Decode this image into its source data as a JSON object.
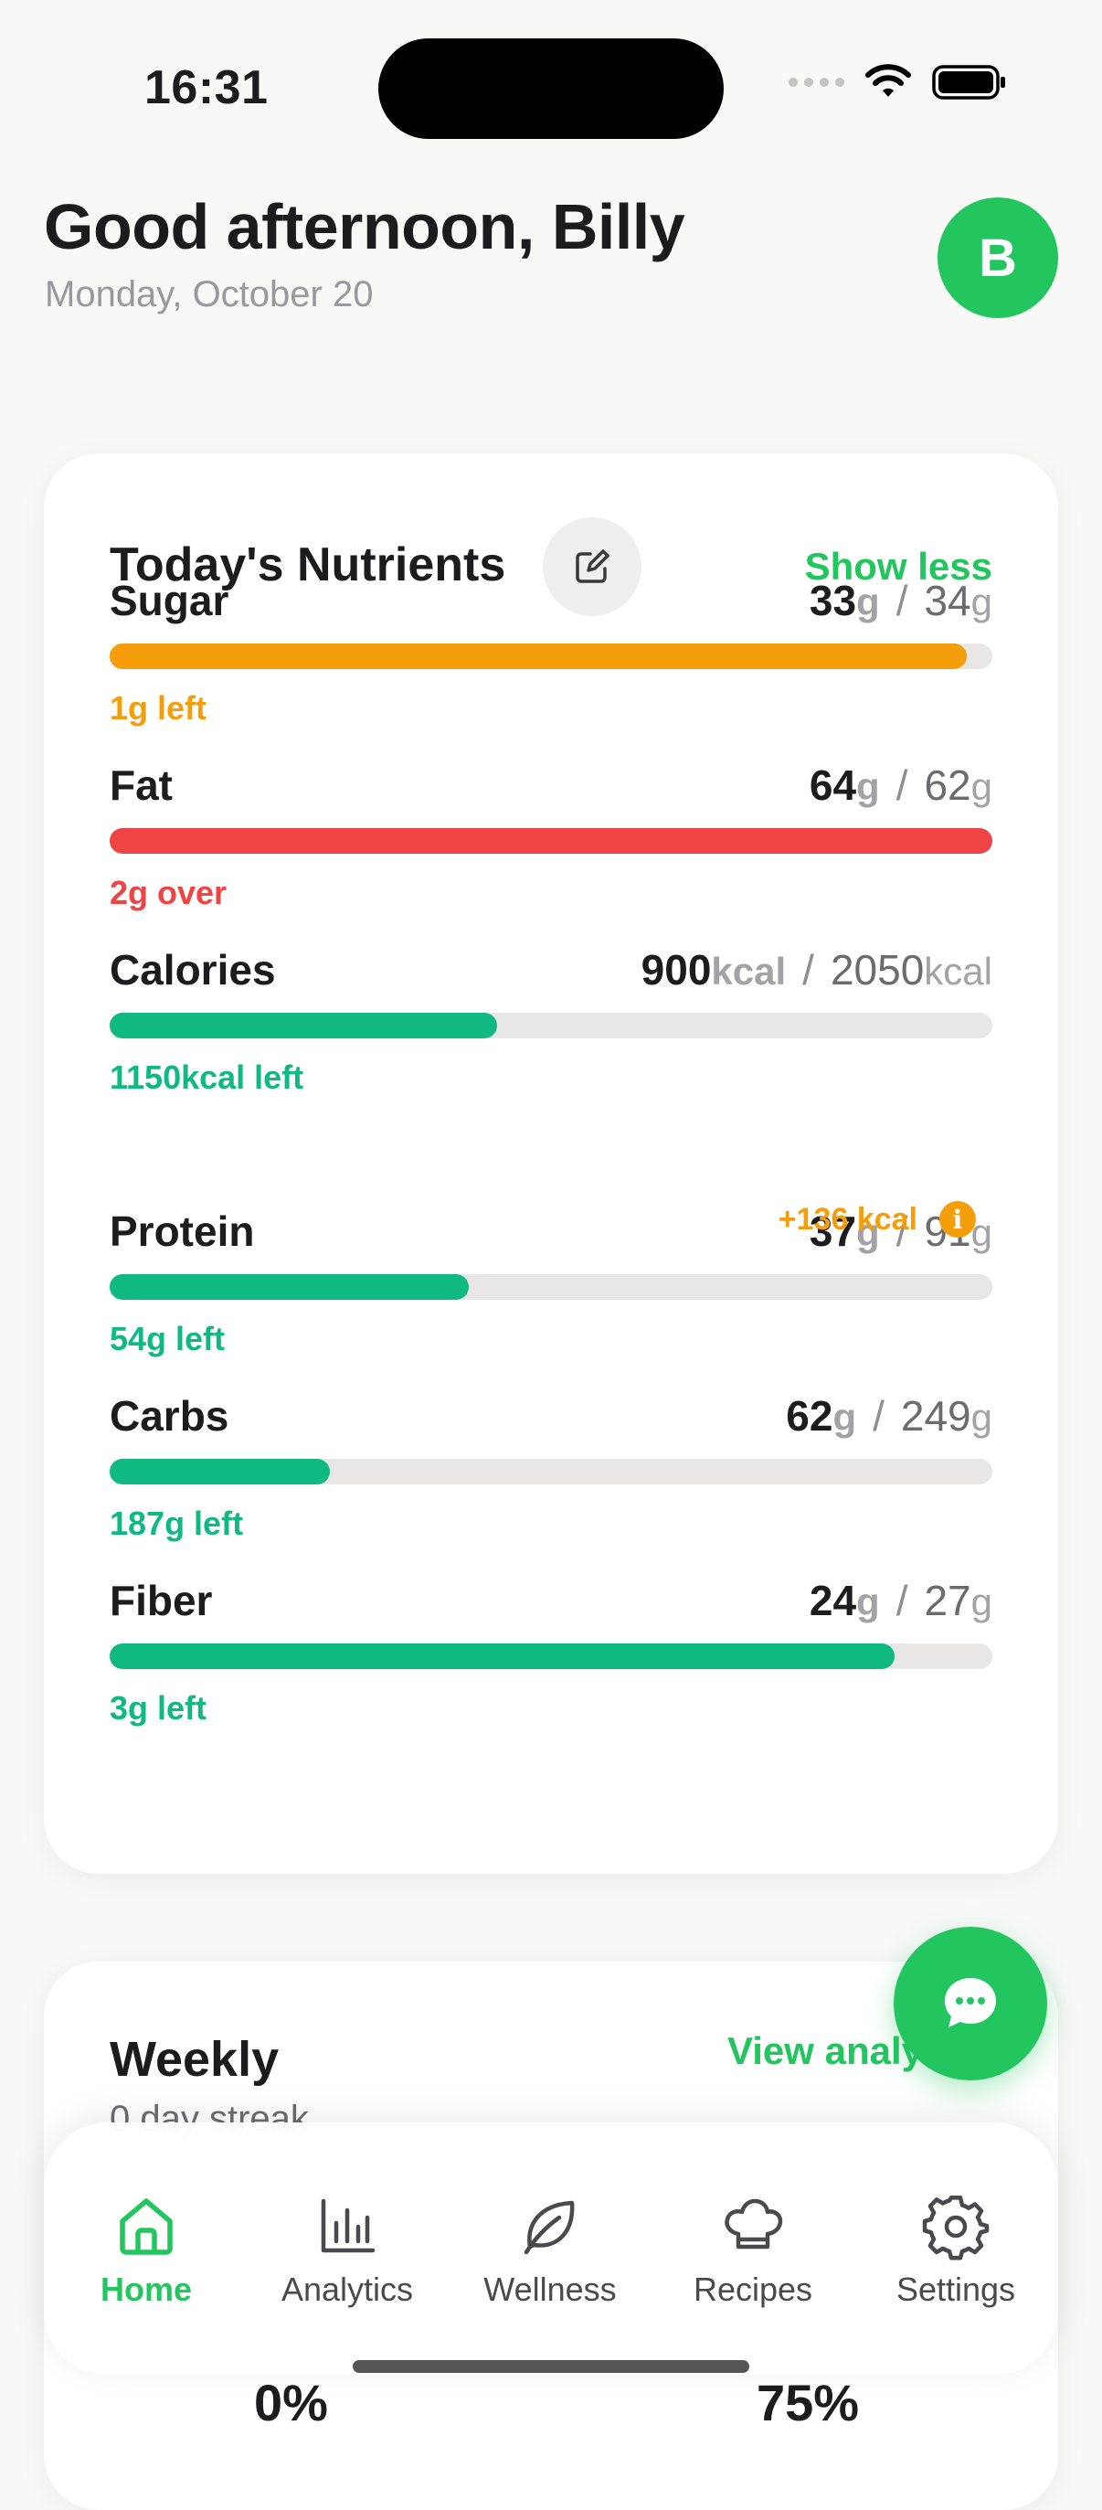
{
  "status_bar": {
    "time": "16:31"
  },
  "header": {
    "greeting": "Good afternoon, Billy",
    "date": "Monday, October 20",
    "avatar_initial": "B"
  },
  "nutrients_card": {
    "title": "Today's Nutrients",
    "toggle_label": "Show less",
    "bonus_label": "+136 kcal",
    "items": [
      {
        "name": "Sugar",
        "current": "33",
        "goal": "34",
        "unit": "g",
        "status": "1g left",
        "progress": 0.971,
        "color": "#f59e0b"
      },
      {
        "name": "Fat",
        "current": "64",
        "goal": "62",
        "unit": "g",
        "status": "2g over",
        "progress": 1.0,
        "color": "#ef4444"
      },
      {
        "name": "Calories",
        "current": "900",
        "goal": "2050",
        "unit": "kcal",
        "status": "1150kcal left",
        "progress": 0.439,
        "color": "#10b981"
      },
      {
        "name": "Protein",
        "current": "37",
        "goal": "91",
        "unit": "g",
        "status": "54g left",
        "progress": 0.407,
        "color": "#10b981"
      },
      {
        "name": "Carbs",
        "current": "62",
        "goal": "249",
        "unit": "g",
        "status": "187g left",
        "progress": 0.249,
        "color": "#10b981"
      },
      {
        "name": "Fiber",
        "current": "24",
        "goal": "27",
        "unit": "g",
        "status": "3g left",
        "progress": 0.889,
        "color": "#10b981"
      }
    ]
  },
  "weekly_card": {
    "title": "Weekly",
    "subtitle": "0 day streak",
    "link_label": "View analytics",
    "stat_left": "0%",
    "stat_right": "75%"
  },
  "tab_bar": {
    "tabs": [
      {
        "label": "Home",
        "icon": "home-icon",
        "active": true
      },
      {
        "label": "Analytics",
        "icon": "bar-chart-icon",
        "active": false
      },
      {
        "label": "Wellness",
        "icon": "leaf-icon",
        "active": false
      },
      {
        "label": "Recipes",
        "icon": "chef-hat-icon",
        "active": false
      },
      {
        "label": "Settings",
        "icon": "gear-icon",
        "active": false
      }
    ]
  },
  "colors": {
    "accent": "#22c55e",
    "progress_ok": "#10b981",
    "warning": "#f59e0b",
    "danger": "#ef4444"
  }
}
